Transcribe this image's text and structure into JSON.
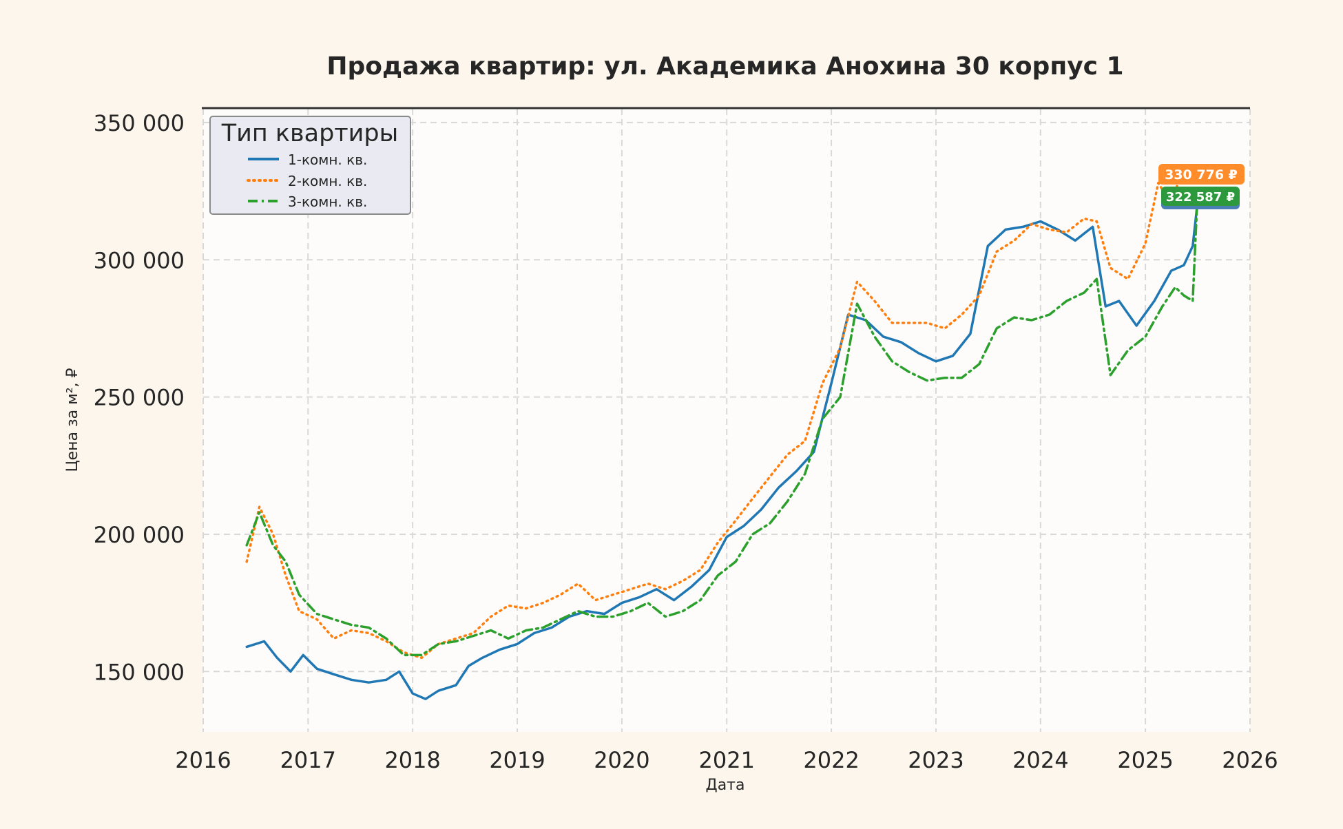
{
  "chart_data": {
    "type": "line",
    "title": "Продажа квартир: ул. Академика Анохина 30 корпус 1",
    "xlabel": "Дата",
    "ylabel": "Цена за м², ₽",
    "xlim": [
      "2016-01-01",
      "2026-01-01"
    ],
    "ylim": [
      128000,
      355000
    ],
    "x_ticks": [
      "2016",
      "2017",
      "2018",
      "2019",
      "2020",
      "2021",
      "2022",
      "2023",
      "2024",
      "2025",
      "2026"
    ],
    "y_ticks": [
      "150 000",
      "200 000",
      "250 000",
      "300 000",
      "350 000"
    ],
    "y_tick_values": [
      150000,
      200000,
      250000,
      300000,
      350000
    ],
    "grid": true,
    "legend": {
      "title": "Тип квартиры",
      "position": "top-left"
    },
    "series": [
      {
        "name": "1-комн. кв.",
        "color": "#1f77b4",
        "style": "solid",
        "x": [
          "2016-06-01",
          "2016-08-01",
          "2016-09-15",
          "2016-11-01",
          "2016-12-15",
          "2017-02-01",
          "2017-04-01",
          "2017-06-01",
          "2017-08-01",
          "2017-10-01",
          "2017-11-15",
          "2018-01-01",
          "2018-02-15",
          "2018-04-01",
          "2018-06-01",
          "2018-07-15",
          "2018-09-01",
          "2018-11-01",
          "2019-01-01",
          "2019-03-01",
          "2019-05-01",
          "2019-07-01",
          "2019-09-01",
          "2019-11-01",
          "2020-01-01",
          "2020-03-01",
          "2020-05-01",
          "2020-07-01",
          "2020-09-01",
          "2020-11-01",
          "2020-12-01",
          "2021-01-01",
          "2021-03-01",
          "2021-05-01",
          "2021-07-01",
          "2021-09-01",
          "2021-11-01",
          "2022-01-01",
          "2022-03-01",
          "2022-05-01",
          "2022-07-01",
          "2022-09-01",
          "2022-11-01",
          "2023-01-01",
          "2023-03-01",
          "2023-05-01",
          "2023-07-01",
          "2023-09-01",
          "2023-11-01",
          "2024-01-01",
          "2024-03-01",
          "2024-05-01",
          "2024-07-01",
          "2024-08-15",
          "2024-10-01",
          "2024-12-01",
          "2025-02-01",
          "2025-04-01",
          "2025-05-15",
          "2025-06-15",
          "2025-07-01"
        ],
        "y": [
          159000,
          161000,
          155000,
          150000,
          156000,
          151000,
          149000,
          147000,
          146000,
          147000,
          150000,
          142000,
          140000,
          143000,
          145000,
          152000,
          155000,
          158000,
          160000,
          164000,
          166000,
          170000,
          172000,
          171000,
          175000,
          177000,
          180000,
          176000,
          181000,
          187000,
          193000,
          199000,
          203000,
          209000,
          217000,
          223000,
          230000,
          255000,
          280000,
          278000,
          272000,
          270000,
          266000,
          263000,
          265000,
          273000,
          305000,
          311000,
          312000,
          314000,
          311000,
          307000,
          312000,
          283000,
          285000,
          276000,
          285000,
          296000,
          298000,
          305000,
          320000
        ]
      },
      {
        "name": "2-комн. кв.",
        "color": "#ff7f0e",
        "style": "dotted",
        "x": [
          "2016-06-01",
          "2016-07-15",
          "2016-09-01",
          "2016-10-15",
          "2016-12-01",
          "2017-02-01",
          "2017-04-01",
          "2017-06-01",
          "2017-08-01",
          "2017-10-01",
          "2017-12-01",
          "2018-02-01",
          "2018-04-01",
          "2018-06-01",
          "2018-08-01",
          "2018-10-01",
          "2018-12-01",
          "2019-02-01",
          "2019-04-01",
          "2019-06-01",
          "2019-08-01",
          "2019-10-01",
          "2019-12-01",
          "2020-02-01",
          "2020-04-01",
          "2020-06-01",
          "2020-08-01",
          "2020-10-01",
          "2020-12-01",
          "2021-02-01",
          "2021-04-01",
          "2021-06-01",
          "2021-08-01",
          "2021-10-01",
          "2021-12-01",
          "2022-02-01",
          "2022-04-01",
          "2022-06-01",
          "2022-08-01",
          "2022-10-01",
          "2022-12-01",
          "2023-02-01",
          "2023-04-01",
          "2023-06-01",
          "2023-08-01",
          "2023-10-01",
          "2023-12-01",
          "2024-02-01",
          "2024-04-01",
          "2024-06-01",
          "2024-07-15",
          "2024-09-01",
          "2024-11-01",
          "2025-01-01",
          "2025-02-15",
          "2025-04-01",
          "2025-05-15",
          "2025-06-15",
          "2025-07-01"
        ],
        "y": [
          190000,
          210000,
          200000,
          185000,
          172000,
          169000,
          162000,
          165000,
          164000,
          161000,
          157000,
          155000,
          160000,
          162000,
          164000,
          170000,
          174000,
          173000,
          175000,
          178000,
          182000,
          176000,
          178000,
          180000,
          182000,
          180000,
          183000,
          187000,
          197000,
          205000,
          213000,
          221000,
          229000,
          234000,
          255000,
          268000,
          292000,
          285000,
          277000,
          277000,
          277000,
          275000,
          280000,
          287000,
          303000,
          307000,
          313000,
          311000,
          310000,
          315000,
          314000,
          297000,
          293000,
          306000,
          328000,
          320000,
          335000,
          333000,
          331000
        ]
      },
      {
        "name": "3-комн. кв.",
        "color": "#2ca02c",
        "style": "dashdot",
        "x": [
          "2016-06-01",
          "2016-07-15",
          "2016-09-01",
          "2016-10-15",
          "2016-12-01",
          "2017-02-01",
          "2017-04-01",
          "2017-06-01",
          "2017-08-01",
          "2017-10-01",
          "2017-12-01",
          "2018-02-01",
          "2018-04-01",
          "2018-06-01",
          "2018-08-01",
          "2018-10-01",
          "2018-12-01",
          "2019-02-01",
          "2019-04-01",
          "2019-06-01",
          "2019-08-01",
          "2019-10-01",
          "2019-12-01",
          "2020-02-01",
          "2020-04-01",
          "2020-06-01",
          "2020-08-01",
          "2020-10-01",
          "2020-12-01",
          "2021-02-01",
          "2021-04-01",
          "2021-06-01",
          "2021-08-01",
          "2021-10-01",
          "2021-12-01",
          "2022-02-01",
          "2022-04-01",
          "2022-06-01",
          "2022-08-01",
          "2022-10-01",
          "2022-12-01",
          "2023-02-01",
          "2023-04-01",
          "2023-06-01",
          "2023-08-01",
          "2023-10-01",
          "2023-12-01",
          "2024-02-01",
          "2024-04-01",
          "2024-06-01",
          "2024-07-15",
          "2024-09-01",
          "2024-11-01",
          "2025-01-01",
          "2025-03-01",
          "2025-04-15",
          "2025-05-15",
          "2025-06-15",
          "2025-07-01"
        ],
        "y": [
          196000,
          208000,
          196000,
          190000,
          178000,
          171000,
          169000,
          167000,
          166000,
          162000,
          156000,
          156000,
          160000,
          161000,
          163000,
          165000,
          162000,
          165000,
          166000,
          169000,
          172000,
          170000,
          170000,
          172000,
          175000,
          170000,
          172000,
          176000,
          185000,
          190000,
          200000,
          204000,
          212000,
          222000,
          242000,
          250000,
          284000,
          272000,
          263000,
          259000,
          256000,
          257000,
          257000,
          262000,
          275000,
          279000,
          278000,
          280000,
          285000,
          288000,
          293000,
          258000,
          267000,
          272000,
          283000,
          290000,
          287000,
          285000,
          322000
        ]
      }
    ],
    "annotations": [
      {
        "text": "330 776 ₽",
        "series": "2-комн. кв.",
        "color": "#ff7f0e"
      },
      {
        "text": "322 587 ₽",
        "series": "3-комн. кв.",
        "color": "#2ca02c"
      }
    ]
  }
}
